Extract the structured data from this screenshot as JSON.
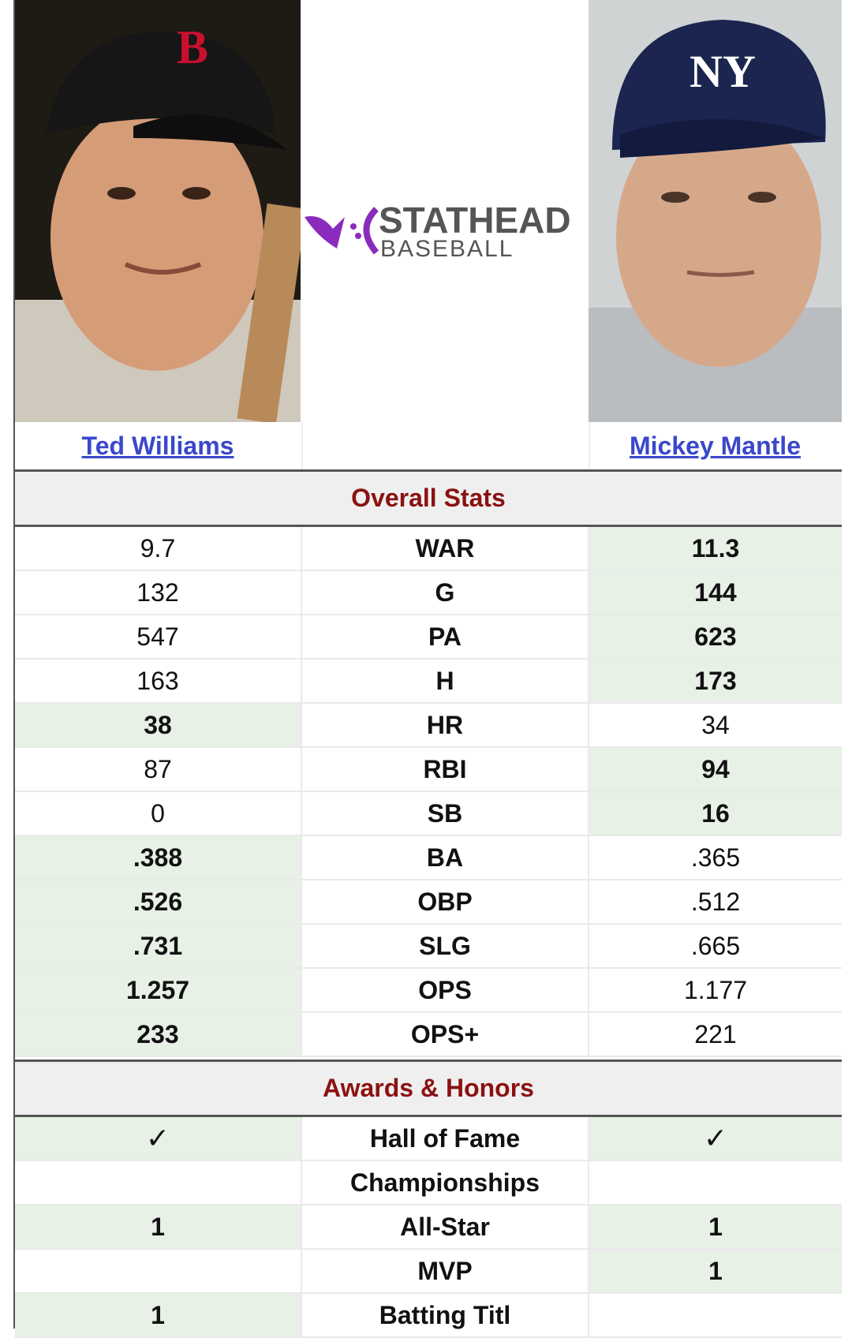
{
  "players": {
    "left": {
      "name": "Ted Williams",
      "cap_letter": "B"
    },
    "right": {
      "name": "Mickey Mantle",
      "cap_letter": "NY"
    }
  },
  "logo": {
    "line1": "STATHEAD",
    "line2": "BASEBALL",
    "accent": "#8a2bbd"
  },
  "sections": {
    "overall": "Overall Stats",
    "awards": "Awards & Honors"
  },
  "stats": [
    {
      "label": "WAR",
      "left": "9.7",
      "right": "11.3",
      "winner": "right"
    },
    {
      "label": "G",
      "left": "132",
      "right": "144",
      "winner": "right"
    },
    {
      "label": "PA",
      "left": "547",
      "right": "623",
      "winner": "right"
    },
    {
      "label": "H",
      "left": "163",
      "right": "173",
      "winner": "right"
    },
    {
      "label": "HR",
      "left": "38",
      "right": "34",
      "winner": "left"
    },
    {
      "label": "RBI",
      "left": "87",
      "right": "94",
      "winner": "right"
    },
    {
      "label": "SB",
      "left": "0",
      "right": "16",
      "winner": "right"
    },
    {
      "label": "BA",
      "left": ".388",
      "right": ".365",
      "winner": "left"
    },
    {
      "label": "OBP",
      "left": ".526",
      "right": ".512",
      "winner": "left"
    },
    {
      "label": "SLG",
      "left": ".731",
      "right": ".665",
      "winner": "left"
    },
    {
      "label": "OPS",
      "left": "1.257",
      "right": "1.177",
      "winner": "left"
    },
    {
      "label": "OPS+",
      "left": "233",
      "right": "221",
      "winner": "left"
    }
  ],
  "awards": [
    {
      "label": "Hall of Fame",
      "left": "✓",
      "right": "✓",
      "winner": "both"
    },
    {
      "label": "Championships",
      "left": "",
      "right": "",
      "winner": "none"
    },
    {
      "label": "All-Star",
      "left": "1",
      "right": "1",
      "winner": "both"
    },
    {
      "label": "MVP",
      "left": "",
      "right": "1",
      "winner": "right"
    },
    {
      "label": "Batting Titl",
      "left": "1",
      "right": "",
      "winner": "left"
    }
  ],
  "colors": {
    "highlight": "#e7f1e5",
    "section_text": "#8b1111",
    "link": "#3a48c9"
  }
}
